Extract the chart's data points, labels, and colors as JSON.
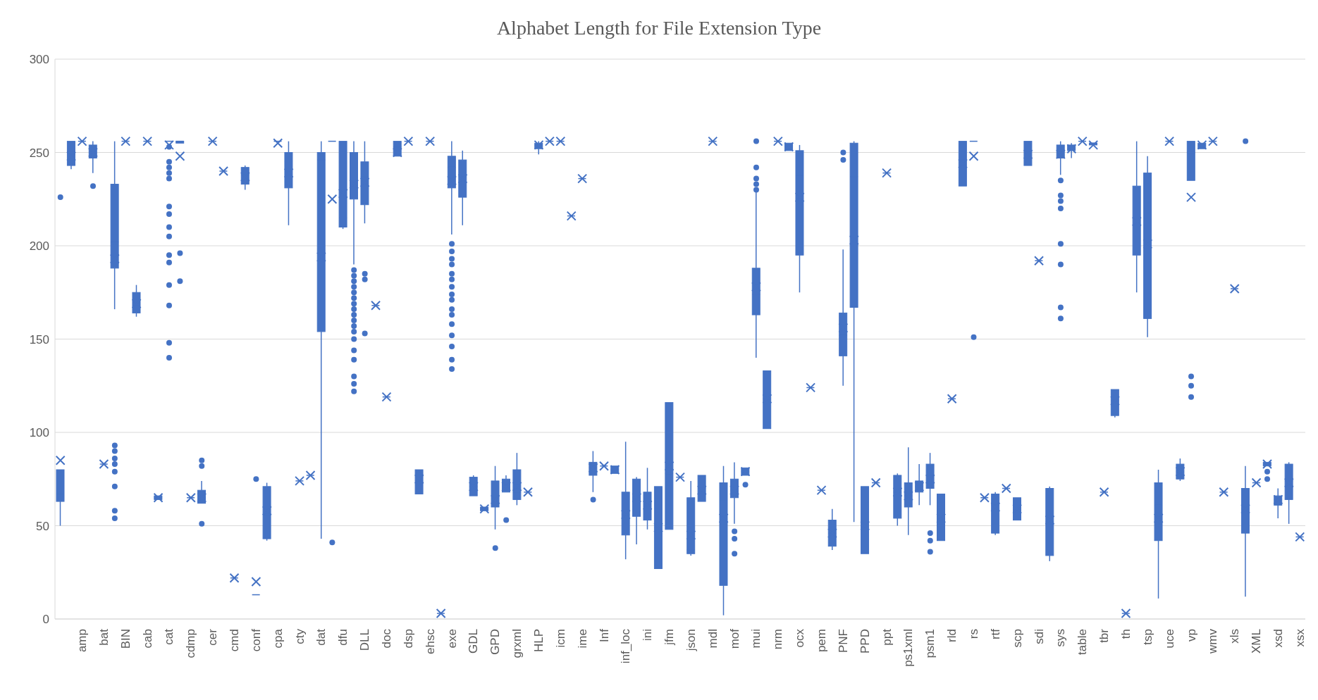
{
  "chart_data": {
    "type": "box",
    "title": "Alphabet Length for File Extension Type",
    "color": "#4472c4",
    "grid": "y",
    "legend": false,
    "ylim": [
      0,
      300
    ],
    "yticks": [
      0,
      50,
      100,
      150,
      200,
      250,
      300
    ],
    "categories": [
      null,
      null,
      "amp",
      null,
      "bat",
      null,
      "BIN",
      null,
      "cab",
      null,
      "cat",
      null,
      "cdmp",
      null,
      "cer",
      null,
      "cmd",
      null,
      "conf",
      null,
      "cpa",
      null,
      "cty",
      null,
      "dat",
      null,
      "dfu",
      null,
      "DLL",
      null,
      "doc",
      null,
      "dsp",
      null,
      "ehsc",
      null,
      "exe",
      null,
      "GDL",
      null,
      "GPD",
      null,
      "grxml",
      null,
      "HLP",
      null,
      "icm",
      null,
      "ime",
      null,
      "Inf",
      null,
      "inf_loc",
      null,
      "ini",
      null,
      "jfm",
      null,
      "json",
      null,
      "mdl",
      null,
      "mof",
      null,
      "mui",
      null,
      "nrm",
      null,
      "ocx",
      null,
      "pem",
      null,
      "PNF",
      null,
      "PPD",
      null,
      "ppt",
      null,
      "ps1xml",
      null,
      "psm1",
      null,
      "rld",
      null,
      "rs",
      null,
      "rtf",
      null,
      "scp",
      null,
      "sdi",
      null,
      "sys",
      null,
      "table",
      null,
      "tbr",
      null,
      "th",
      null,
      "tsp",
      null,
      "uce",
      null,
      "vp",
      null,
      "wmv",
      null,
      "xls",
      null,
      "XML",
      null,
      "xsd",
      null,
      "xsx"
    ],
    "boxes": [
      {
        "low": 50,
        "q1": 63,
        "median": 67,
        "q3": 80,
        "high": 80,
        "mean": 85,
        "outliers": [
          226
        ]
      },
      {
        "low": 241,
        "q1": 243,
        "median": 250,
        "q3": 256,
        "high": 256,
        "mean": 248
      },
      {
        "low": 256,
        "q1": 256,
        "median": 256,
        "q3": 256,
        "high": 256,
        "mean": 256
      },
      {
        "low": 239,
        "q1": 247,
        "median": 250,
        "q3": 254,
        "high": 256,
        "mean": 250,
        "outliers": [
          232
        ]
      },
      {
        "low": 83,
        "q1": 83,
        "median": 83,
        "q3": 83,
        "high": 83,
        "mean": 83
      },
      {
        "low": 166,
        "q1": 188,
        "median": 202,
        "q3": 233,
        "high": 256,
        "mean": 193,
        "outliers": [
          93,
          90,
          86,
          83,
          79,
          71,
          58,
          54
        ]
      },
      {
        "low": 256,
        "q1": 256,
        "median": 256,
        "q3": 256,
        "high": 256,
        "mean": 256
      },
      {
        "low": 162,
        "q1": 164,
        "median": 170,
        "q3": 175,
        "high": 179,
        "mean": 169
      },
      {
        "low": 256,
        "q1": 256,
        "median": 256,
        "q3": 256,
        "high": 256,
        "mean": 256
      },
      {
        "low": 64,
        "q1": 64,
        "median": 65,
        "q3": 66,
        "high": 66,
        "mean": 65
      },
      {
        "low": 256,
        "q1": 256,
        "median": 256,
        "q3": 256,
        "high": 256,
        "mean": 254,
        "outliers": [
          253,
          245,
          242,
          239,
          236,
          221,
          217,
          210,
          205,
          195,
          191,
          179,
          168,
          148,
          140
        ]
      },
      {
        "low": 255,
        "q1": 255,
        "median": 256,
        "q3": 256,
        "high": 256,
        "mean": 248,
        "outliers": [
          196,
          181
        ]
      },
      {
        "low": 65,
        "q1": 65,
        "median": 65,
        "q3": 65,
        "high": 65,
        "mean": 65
      },
      {
        "low": 62,
        "q1": 62,
        "median": 65,
        "q3": 69,
        "high": 74,
        "mean": 65,
        "outliers": [
          85,
          82,
          51
        ]
      },
      {
        "low": 256,
        "q1": 256,
        "median": 256,
        "q3": 256,
        "high": 256,
        "mean": 256
      },
      {
        "low": 240,
        "q1": 240,
        "median": 240,
        "q3": 240,
        "high": 240,
        "mean": 240
      },
      {
        "low": 22,
        "q1": 22,
        "median": 22,
        "q3": 22,
        "high": 22,
        "mean": 22
      },
      {
        "low": 230,
        "q1": 233,
        "median": 238,
        "q3": 242,
        "high": 243,
        "mean": 237
      },
      {
        "low": 13,
        "q1": 13,
        "median": 13,
        "q3": 13,
        "high": 13,
        "mean": 20,
        "outliers": [
          75
        ]
      },
      {
        "low": 42,
        "q1": 43,
        "median": 56,
        "q3": 71,
        "high": 73,
        "mean": 58
      },
      {
        "low": 256,
        "q1": 256,
        "median": 256,
        "q3": 256,
        "high": 256,
        "mean": 255
      },
      {
        "low": 211,
        "q1": 231,
        "median": 245,
        "q3": 250,
        "high": 256,
        "mean": 239
      },
      {
        "low": 74,
        "q1": 74,
        "median": 74,
        "q3": 74,
        "high": 74,
        "mean": 74
      },
      {
        "low": 77,
        "q1": 77,
        "median": 77,
        "q3": 77,
        "high": 77,
        "mean": 77
      },
      {
        "low": 43,
        "q1": 154,
        "median": 246,
        "q3": 250,
        "high": 256,
        "mean": 194
      },
      {
        "low": 256,
        "q1": 256,
        "median": 256,
        "q3": 256,
        "high": 256,
        "mean": 225,
        "outliers": [
          41
        ]
      },
      {
        "low": 209,
        "q1": 210,
        "median": 215,
        "q3": 256,
        "high": 256,
        "mean": 228
      },
      {
        "low": 190,
        "q1": 225,
        "median": 241,
        "q3": 250,
        "high": 256,
        "mean": 233,
        "outliers": [
          187,
          184,
          181,
          178,
          175,
          172,
          169,
          166,
          163,
          160,
          157,
          154,
          150,
          144,
          139,
          130,
          126,
          122
        ]
      },
      {
        "low": 212,
        "q1": 222,
        "median": 237,
        "q3": 245,
        "high": 256,
        "mean": 234,
        "outliers": [
          185,
          182,
          153
        ]
      },
      {
        "low": 168,
        "q1": 168,
        "median": 168,
        "q3": 168,
        "high": 168,
        "mean": 168
      },
      {
        "low": 119,
        "q1": 119,
        "median": 119,
        "q3": 119,
        "high": 119,
        "mean": 119
      },
      {
        "low": 248,
        "q1": 248,
        "median": 253,
        "q3": 256,
        "high": 256,
        "mean": 250
      },
      {
        "low": 256,
        "q1": 256,
        "median": 256,
        "q3": 256,
        "high": 256,
        "mean": 256
      },
      {
        "low": 67,
        "q1": 67,
        "median": 74,
        "q3": 80,
        "high": 80,
        "mean": 75
      },
      {
        "low": 256,
        "q1": 256,
        "median": 256,
        "q3": 256,
        "high": 256,
        "mean": 256
      },
      {
        "low": 3,
        "q1": 3,
        "median": 3,
        "q3": 3,
        "high": 3,
        "mean": 3
      },
      {
        "low": 206,
        "q1": 231,
        "median": 242,
        "q3": 248,
        "high": 256,
        "mean": 235,
        "outliers": [
          201,
          197,
          193,
          190,
          185,
          182,
          178,
          174,
          171,
          166,
          163,
          158,
          152,
          146,
          139,
          134
        ]
      },
      {
        "low": 211,
        "q1": 226,
        "median": 237,
        "q3": 246,
        "high": 251,
        "mean": 236
      },
      {
        "low": 66,
        "q1": 66,
        "median": 71,
        "q3": 76,
        "high": 77,
        "mean": 71
      },
      {
        "low": 58,
        "q1": 58,
        "median": 59,
        "q3": 60,
        "high": 60,
        "mean": 59
      },
      {
        "low": 48,
        "q1": 60,
        "median": 65,
        "q3": 74,
        "high": 82,
        "mean": 64,
        "outliers": [
          38
        ]
      },
      {
        "low": 68,
        "q1": 68,
        "median": 72,
        "q3": 75,
        "high": 77,
        "mean": 71,
        "outliers": [
          53
        ]
      },
      {
        "low": 61,
        "q1": 64,
        "median": 68,
        "q3": 80,
        "high": 89,
        "mean": 71
      },
      {
        "low": 68,
        "q1": 68,
        "median": 68,
        "q3": 68,
        "high": 68,
        "mean": 68
      },
      {
        "low": 249,
        "q1": 252,
        "median": 254,
        "q3": 255,
        "high": 256,
        "mean": 254
      },
      {
        "low": 256,
        "q1": 256,
        "median": 256,
        "q3": 256,
        "high": 256,
        "mean": 256
      },
      {
        "low": 256,
        "q1": 256,
        "median": 256,
        "q3": 256,
        "high": 256,
        "mean": 256
      },
      {
        "low": 216,
        "q1": 216,
        "median": 216,
        "q3": 216,
        "high": 216,
        "mean": 216
      },
      {
        "low": 236,
        "q1": 236,
        "median": 236,
        "q3": 236,
        "high": 236,
        "mean": 236
      },
      {
        "low": 68,
        "q1": 77,
        "median": 81,
        "q3": 84,
        "high": 90,
        "mean": 81,
        "outliers": [
          64
        ]
      },
      {
        "low": 82,
        "q1": 82,
        "median": 82,
        "q3": 82,
        "high": 82,
        "mean": 82
      },
      {
        "low": 78,
        "q1": 78,
        "median": 80,
        "q3": 82,
        "high": 82,
        "mean": 80
      },
      {
        "low": 32,
        "q1": 45,
        "median": 56,
        "q3": 68,
        "high": 95,
        "mean": 56
      },
      {
        "low": 40,
        "q1": 55,
        "median": 65,
        "q3": 75,
        "high": 76,
        "mean": 65
      },
      {
        "low": 48,
        "q1": 53,
        "median": 61,
        "q3": 68,
        "high": 81,
        "mean": 61
      },
      {
        "low": 27,
        "q1": 27,
        "median": 49,
        "q3": 71,
        "high": 71,
        "mean": 49
      },
      {
        "low": 48,
        "q1": 48,
        "median": 78,
        "q3": 116,
        "high": 116,
        "mean": 82
      },
      {
        "low": 76,
        "q1": 76,
        "median": 76,
        "q3": 76,
        "high": 76,
        "mean": 76
      },
      {
        "low": 34,
        "q1": 35,
        "median": 37,
        "q3": 65,
        "high": 74,
        "mean": 45
      },
      {
        "low": 63,
        "q1": 63,
        "median": 70,
        "q3": 77,
        "high": 77,
        "mean": 69
      },
      {
        "low": 256,
        "q1": 256,
        "median": 256,
        "q3": 256,
        "high": 256,
        "mean": 256
      },
      {
        "low": 2,
        "q1": 18,
        "median": 64,
        "q3": 73,
        "high": 82,
        "mean": 54
      },
      {
        "low": 51,
        "q1": 65,
        "median": 69,
        "q3": 75,
        "high": 84,
        "mean": 69,
        "outliers": [
          47,
          43,
          35
        ]
      },
      {
        "low": 77,
        "q1": 77,
        "median": 79,
        "q3": 81,
        "high": 81,
        "mean": 79,
        "outliers": [
          72
        ]
      },
      {
        "low": 140,
        "q1": 163,
        "median": 174,
        "q3": 188,
        "high": 229,
        "mean": 178,
        "outliers": [
          256,
          242,
          236,
          233,
          230
        ]
      },
      {
        "low": 102,
        "q1": 102,
        "median": 118,
        "q3": 133,
        "high": 133,
        "mean": 118
      },
      {
        "low": 256,
        "q1": 256,
        "median": 256,
        "q3": 256,
        "high": 256,
        "mean": 256
      },
      {
        "low": 251,
        "q1": 251,
        "median": 253,
        "q3": 255,
        "high": 255,
        "mean": 253
      },
      {
        "low": 175,
        "q1": 195,
        "median": 238,
        "q3": 251,
        "high": 254,
        "mean": 226
      },
      {
        "low": 124,
        "q1": 124,
        "median": 124,
        "q3": 124,
        "high": 124,
        "mean": 124
      },
      {
        "low": 69,
        "q1": 69,
        "median": 69,
        "q3": 69,
        "high": 69,
        "mean": 69
      },
      {
        "low": 37,
        "q1": 39,
        "median": 46,
        "q3": 53,
        "high": 59,
        "mean": 46
      },
      {
        "low": 125,
        "q1": 141,
        "median": 152,
        "q3": 164,
        "high": 198,
        "mean": 156,
        "outliers": [
          250,
          246
        ]
      },
      {
        "low": 52,
        "q1": 167,
        "median": 237,
        "q3": 255,
        "high": 256,
        "mean": 203
      },
      {
        "low": 35,
        "q1": 35,
        "median": 50,
        "q3": 71,
        "high": 71,
        "mean": 50
      },
      {
        "low": 73,
        "q1": 73,
        "median": 73,
        "q3": 73,
        "high": 73,
        "mean": 73
      },
      {
        "low": 239,
        "q1": 239,
        "median": 239,
        "q3": 239,
        "high": 239,
        "mean": 239
      },
      {
        "low": 50,
        "q1": 54,
        "median": 68,
        "q3": 77,
        "high": 78,
        "mean": 68
      },
      {
        "low": 45,
        "q1": 60,
        "median": 66,
        "q3": 73,
        "high": 92,
        "mean": 66
      },
      {
        "low": 61,
        "q1": 68,
        "median": 71,
        "q3": 74,
        "high": 83,
        "mean": 71
      },
      {
        "low": 61,
        "q1": 70,
        "median": 77,
        "q3": 83,
        "high": 89,
        "mean": 75,
        "outliers": [
          46,
          42,
          36
        ]
      },
      {
        "low": 42,
        "q1": 42,
        "median": 54,
        "q3": 67,
        "high": 67,
        "mean": 54
      },
      {
        "low": 118,
        "q1": 118,
        "median": 118,
        "q3": 118,
        "high": 118,
        "mean": 118
      },
      {
        "low": 232,
        "q1": 232,
        "median": 246,
        "q3": 256,
        "high": 256,
        "mean": 244
      },
      {
        "low": 256,
        "q1": 256,
        "median": 256,
        "q3": 256,
        "high": 256,
        "mean": 248,
        "outliers": [
          151
        ]
      },
      {
        "low": 65,
        "q1": 65,
        "median": 65,
        "q3": 65,
        "high": 65,
        "mean": 65
      },
      {
        "low": 45,
        "q1": 46,
        "median": 61,
        "q3": 67,
        "high": 68,
        "mean": 60
      },
      {
        "low": 70,
        "q1": 70,
        "median": 70,
        "q3": 70,
        "high": 70,
        "mean": 70
      },
      {
        "low": 53,
        "q1": 53,
        "median": 59,
        "q3": 65,
        "high": 65,
        "mean": 59
      },
      {
        "low": 243,
        "q1": 243,
        "median": 250,
        "q3": 256,
        "high": 256,
        "mean": 249
      },
      {
        "low": 192,
        "q1": 192,
        "median": 192,
        "q3": 192,
        "high": 192,
        "mean": 192
      },
      {
        "low": 31,
        "q1": 34,
        "median": 52,
        "q3": 70,
        "high": 71,
        "mean": 53
      },
      {
        "low": 238,
        "q1": 247,
        "median": 250,
        "q3": 254,
        "high": 256,
        "mean": 249,
        "outliers": [
          235,
          227,
          224,
          220,
          201,
          190,
          167,
          161
        ]
      },
      {
        "low": 247,
        "q1": 251,
        "median": 252,
        "q3": 254,
        "high": 255,
        "mean": 252
      },
      {
        "low": 256,
        "q1": 256,
        "median": 256,
        "q3": 256,
        "high": 256,
        "mean": 256
      },
      {
        "low": 254,
        "q1": 254,
        "median": 255,
        "q3": 255,
        "high": 255,
        "mean": 254
      },
      {
        "low": 68,
        "q1": 68,
        "median": 68,
        "q3": 68,
        "high": 68,
        "mean": 68
      },
      {
        "low": 108,
        "q1": 109,
        "median": 117,
        "q3": 123,
        "high": 123,
        "mean": 117
      },
      {
        "low": 3,
        "q1": 3,
        "median": 3,
        "q3": 3,
        "high": 3,
        "mean": 3
      },
      {
        "low": 175,
        "q1": 195,
        "median": 215,
        "q3": 232,
        "high": 256,
        "mean": 213
      },
      {
        "low": 151,
        "q1": 161,
        "median": 200,
        "q3": 239,
        "high": 248,
        "mean": 201
      },
      {
        "low": 11,
        "q1": 42,
        "median": 61,
        "q3": 73,
        "high": 80,
        "mean": 54
      },
      {
        "low": 256,
        "q1": 256,
        "median": 256,
        "q3": 256,
        "high": 256,
        "mean": 256
      },
      {
        "low": 74,
        "q1": 75,
        "median": 79,
        "q3": 83,
        "high": 86,
        "mean": 79
      },
      {
        "low": 235,
        "q1": 235,
        "median": 250,
        "q3": 256,
        "high": 256,
        "mean": 226,
        "outliers": [
          130,
          125,
          119
        ]
      },
      {
        "low": 252,
        "q1": 252,
        "median": 254,
        "q3": 255,
        "high": 255,
        "mean": 254
      },
      {
        "low": 256,
        "q1": 256,
        "median": 256,
        "q3": 256,
        "high": 256,
        "mean": 256
      },
      {
        "low": 68,
        "q1": 68,
        "median": 68,
        "q3": 68,
        "high": 68,
        "mean": 68
      },
      {
        "low": 177,
        "q1": 177,
        "median": 177,
        "q3": 177,
        "high": 177,
        "mean": 177
      },
      {
        "low": 12,
        "q1": 46,
        "median": 59,
        "q3": 70,
        "high": 82,
        "mean": 59,
        "outliers": [
          256
        ]
      },
      {
        "low": 73,
        "q1": 73,
        "median": 73,
        "q3": 73,
        "high": 73,
        "mean": 73
      },
      {
        "low": 82,
        "q1": 82,
        "median": 83,
        "q3": 84,
        "high": 84,
        "mean": 83,
        "outliers": [
          79,
          75
        ]
      },
      {
        "low": 54,
        "q1": 61,
        "median": 64,
        "q3": 66,
        "high": 70,
        "mean": 64
      },
      {
        "low": 51,
        "q1": 64,
        "median": 74,
        "q3": 83,
        "high": 84,
        "mean": 73
      },
      {
        "low": 44,
        "q1": 44,
        "median": 44,
        "q3": 44,
        "high": 44,
        "mean": 44
      }
    ]
  }
}
